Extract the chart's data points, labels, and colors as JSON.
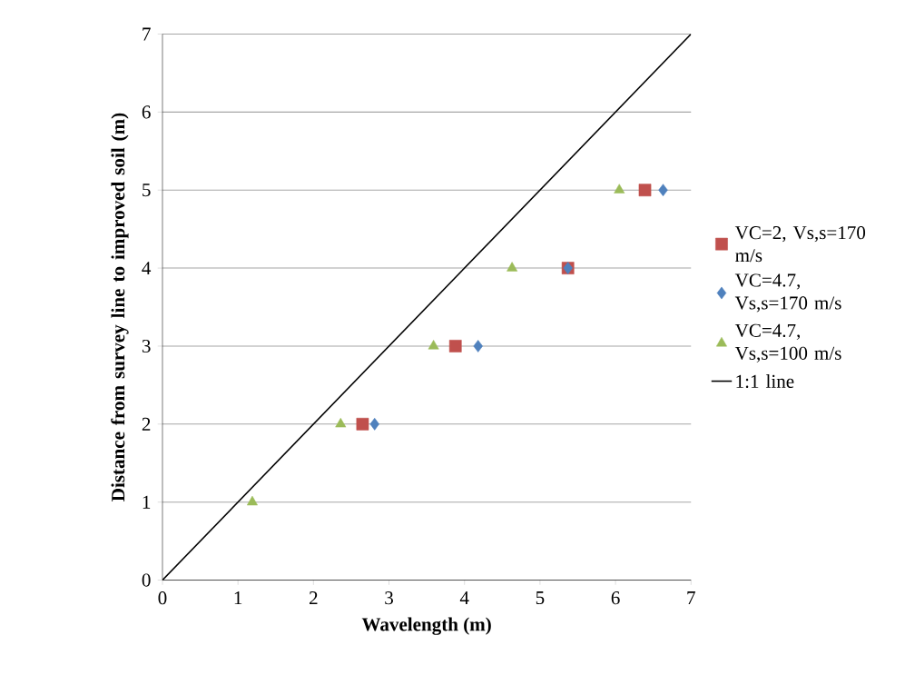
{
  "chart_data": {
    "type": "scatter",
    "xlabel": "Wavelength (m)",
    "ylabel": "Distance from survey line to improved soil (m)",
    "xlim": [
      0,
      7
    ],
    "ylim": [
      0,
      7
    ],
    "xticks": [
      0,
      1,
      2,
      3,
      4,
      5,
      6,
      7
    ],
    "yticks": [
      0,
      1,
      2,
      3,
      4,
      5,
      6,
      7
    ],
    "grid": "y",
    "legend": "right",
    "series": [
      {
        "name": "VC=2, Vs,s=170 m/s",
        "color": "#c0504d",
        "marker": "square",
        "x": [
          2.65,
          3.88,
          5.37,
          6.39
        ],
        "values": [
          2,
          3,
          4,
          5
        ]
      },
      {
        "name": "VC=4.7, Vs,s=170 m/s",
        "color": "#4f81bd",
        "marker": "diamond",
        "x": [
          2.81,
          4.18,
          5.37,
          6.63
        ],
        "values": [
          2,
          3,
          4,
          5
        ]
      },
      {
        "name": "VC=4.7, Vs,s=100 m/s",
        "color": "#9bbb59",
        "marker": "triangle",
        "x": [
          1.19,
          2.36,
          3.59,
          4.63,
          6.05
        ],
        "values": [
          1,
          2,
          3,
          4,
          5
        ]
      },
      {
        "name": "1:1 line",
        "type": "line",
        "color": "#000000",
        "marker": "none",
        "line_style": "solid",
        "x": [
          0,
          7
        ],
        "values": [
          0,
          7
        ]
      }
    ]
  }
}
